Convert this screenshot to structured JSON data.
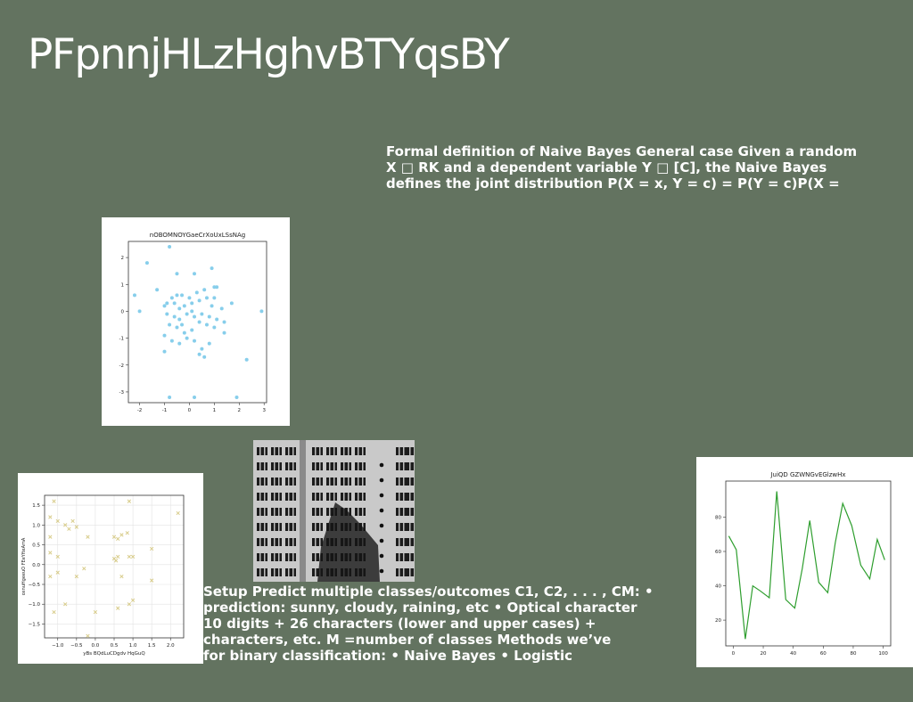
{
  "slide": {
    "title": "PFpnnjHLzHghvBTYqsBY",
    "text_block_1": [
      "Formal definition of Naive Bayes General case Given a random",
      "X □ RK and a dependent variable Y □ [C], the Naive Bayes",
      "defines the joint distribution P(X = x, Y = c) = P(Y = c)P(X ="
    ],
    "text_block_2": [
      "Setup Predict multiple classes/outcomes C1, C2, . . . , CM: •",
      "prediction: sunny, cloudy, raining, etc • Optical character",
      "10 digits + 26 characters (lower and upper cases) +",
      "characters, etc. M =number of classes Methods we’ve",
      "for binary classification: • Naive Bayes • Logistic"
    ]
  },
  "colors": {
    "background": "#637360",
    "scatter1": "#87ceeb",
    "scatter2": "#d8cc8a",
    "line": "#2e9e2e"
  },
  "chart_data": [
    {
      "type": "scatter",
      "title": "nOBOMNOYGaeCrXoUxLSsNAg",
      "xlabel": "",
      "ylabel": "",
      "xlim": [
        -2.45,
        3.1
      ],
      "ylim": [
        -3.4,
        2.6
      ],
      "xticks": [
        -2,
        -1,
        0,
        1,
        2,
        3
      ],
      "yticks": [
        -3,
        -2,
        -1,
        0,
        1,
        2
      ],
      "grid": false,
      "marker": "circle",
      "points": [
        [
          -0.8,
          2.4
        ],
        [
          -1.7,
          1.8
        ],
        [
          -0.5,
          1.4
        ],
        [
          0.2,
          1.4
        ],
        [
          0.9,
          1.6
        ],
        [
          -1.3,
          0.8
        ],
        [
          -2.2,
          0.6
        ],
        [
          -1.0,
          0.2
        ],
        [
          -0.7,
          0.5
        ],
        [
          -0.5,
          0.6
        ],
        [
          -0.3,
          0.6
        ],
        [
          0.0,
          0.5
        ],
        [
          0.3,
          0.7
        ],
        [
          0.6,
          0.8
        ],
        [
          1.0,
          0.9
        ],
        [
          1.1,
          0.9
        ],
        [
          -0.9,
          0.3
        ],
        [
          -0.6,
          0.3
        ],
        [
          -0.4,
          0.1
        ],
        [
          -0.2,
          0.2
        ],
        [
          0.1,
          0.3
        ],
        [
          0.4,
          0.4
        ],
        [
          0.7,
          0.5
        ],
        [
          1.0,
          0.5
        ],
        [
          1.3,
          0.1
        ],
        [
          1.7,
          0.3
        ],
        [
          -2.0,
          0.0
        ],
        [
          -0.9,
          -0.1
        ],
        [
          -0.6,
          -0.2
        ],
        [
          -0.4,
          -0.3
        ],
        [
          -0.1,
          -0.1
        ],
        [
          0.2,
          -0.2
        ],
        [
          0.5,
          -0.1
        ],
        [
          0.8,
          -0.2
        ],
        [
          1.1,
          -0.3
        ],
        [
          1.4,
          -0.4
        ],
        [
          -0.8,
          -0.5
        ],
        [
          -0.5,
          -0.6
        ],
        [
          -0.2,
          -0.8
        ],
        [
          0.1,
          -0.7
        ],
        [
          0.4,
          -0.4
        ],
        [
          0.7,
          -0.5
        ],
        [
          1.0,
          -0.6
        ],
        [
          1.4,
          -0.8
        ],
        [
          -1.0,
          -0.9
        ],
        [
          -0.7,
          -1.1
        ],
        [
          -0.4,
          -1.2
        ],
        [
          -0.1,
          -1.0
        ],
        [
          0.2,
          -1.1
        ],
        [
          0.5,
          -1.4
        ],
        [
          0.8,
          -1.2
        ],
        [
          -1.0,
          -1.5
        ],
        [
          0.4,
          -1.6
        ],
        [
          0.6,
          -1.7
        ],
        [
          2.3,
          -1.8
        ],
        [
          0.2,
          -3.2
        ],
        [
          -0.8,
          -3.2
        ],
        [
          1.9,
          -3.2
        ],
        [
          2.9,
          0.0
        ],
        [
          0.1,
          0.0
        ],
        [
          -0.3,
          -0.5
        ],
        [
          0.9,
          0.2
        ]
      ]
    },
    {
      "type": "scatter",
      "title": "",
      "xlabel": "yBs BQdLuCDgdv HqGuQ",
      "ylabel": "oxnuHgeeuO FEeYfteAmA",
      "xlim": [
        -1.35,
        2.35
      ],
      "ylim": [
        -1.85,
        1.75
      ],
      "xticks": [
        -1.0,
        -0.5,
        0.0,
        0.5,
        1.0,
        1.5,
        2.0
      ],
      "xtick_labels": [
        "−1.0",
        "−0.5",
        "0.0",
        "0.5",
        "1.0",
        "1.5",
        "2.0"
      ],
      "yticks": [
        -1.5,
        -1.0,
        -0.5,
        0.0,
        0.5,
        1.0,
        1.5
      ],
      "ytick_labels": [
        "−1.5",
        "−1.0",
        "−0.5",
        "0.0",
        "0.5",
        "1.0",
        "1.5"
      ],
      "grid": true,
      "marker": "x",
      "points": [
        [
          -1.1,
          1.6
        ],
        [
          -1.2,
          1.2
        ],
        [
          -1.0,
          1.1
        ],
        [
          -0.8,
          1.0
        ],
        [
          -0.6,
          1.1
        ],
        [
          -0.7,
          0.9
        ],
        [
          -0.5,
          0.95
        ],
        [
          -1.2,
          0.7
        ],
        [
          -1.2,
          0.3
        ],
        [
          -1.0,
          0.2
        ],
        [
          -0.2,
          0.7
        ],
        [
          0.5,
          0.7
        ],
        [
          0.6,
          0.65
        ],
        [
          0.7,
          0.75
        ],
        [
          0.85,
          0.8
        ],
        [
          0.9,
          1.6
        ],
        [
          2.2,
          1.3
        ],
        [
          1.5,
          0.4
        ],
        [
          0.9,
          0.2
        ],
        [
          1.0,
          0.2
        ],
        [
          0.5,
          0.15
        ],
        [
          0.55,
          0.1
        ],
        [
          0.6,
          0.2
        ],
        [
          -0.3,
          -0.1
        ],
        [
          -1.2,
          -0.3
        ],
        [
          -1.0,
          -0.2
        ],
        [
          -0.5,
          -0.3
        ],
        [
          -0.8,
          -1.0
        ],
        [
          -1.1,
          -1.2
        ],
        [
          0.0,
          -1.2
        ],
        [
          0.6,
          -1.1
        ],
        [
          0.9,
          -1.0
        ],
        [
          1.0,
          -0.9
        ],
        [
          1.5,
          -0.4
        ],
        [
          0.7,
          -0.3
        ],
        [
          -0.2,
          -1.8
        ]
      ]
    },
    {
      "type": "line",
      "title": "JuiQD GZWNGvEGlzwHx",
      "xlabel": "",
      "ylabel": "",
      "xlim": [
        -5,
        105
      ],
      "ylim": [
        5,
        101
      ],
      "xticks": [
        0,
        20,
        40,
        60,
        80,
        100
      ],
      "yticks": [
        20,
        40,
        60,
        80
      ],
      "grid": false,
      "x": [
        -3,
        2,
        8,
        13,
        18,
        24,
        29,
        35,
        41,
        46,
        51,
        57,
        63,
        68,
        73,
        79,
        85,
        91,
        96,
        101
      ],
      "y": [
        69,
        61,
        9,
        40,
        37,
        33,
        95,
        32,
        27,
        50,
        78,
        42,
        36,
        65,
        88,
        75,
        52,
        44,
        67,
        55
      ]
    }
  ]
}
